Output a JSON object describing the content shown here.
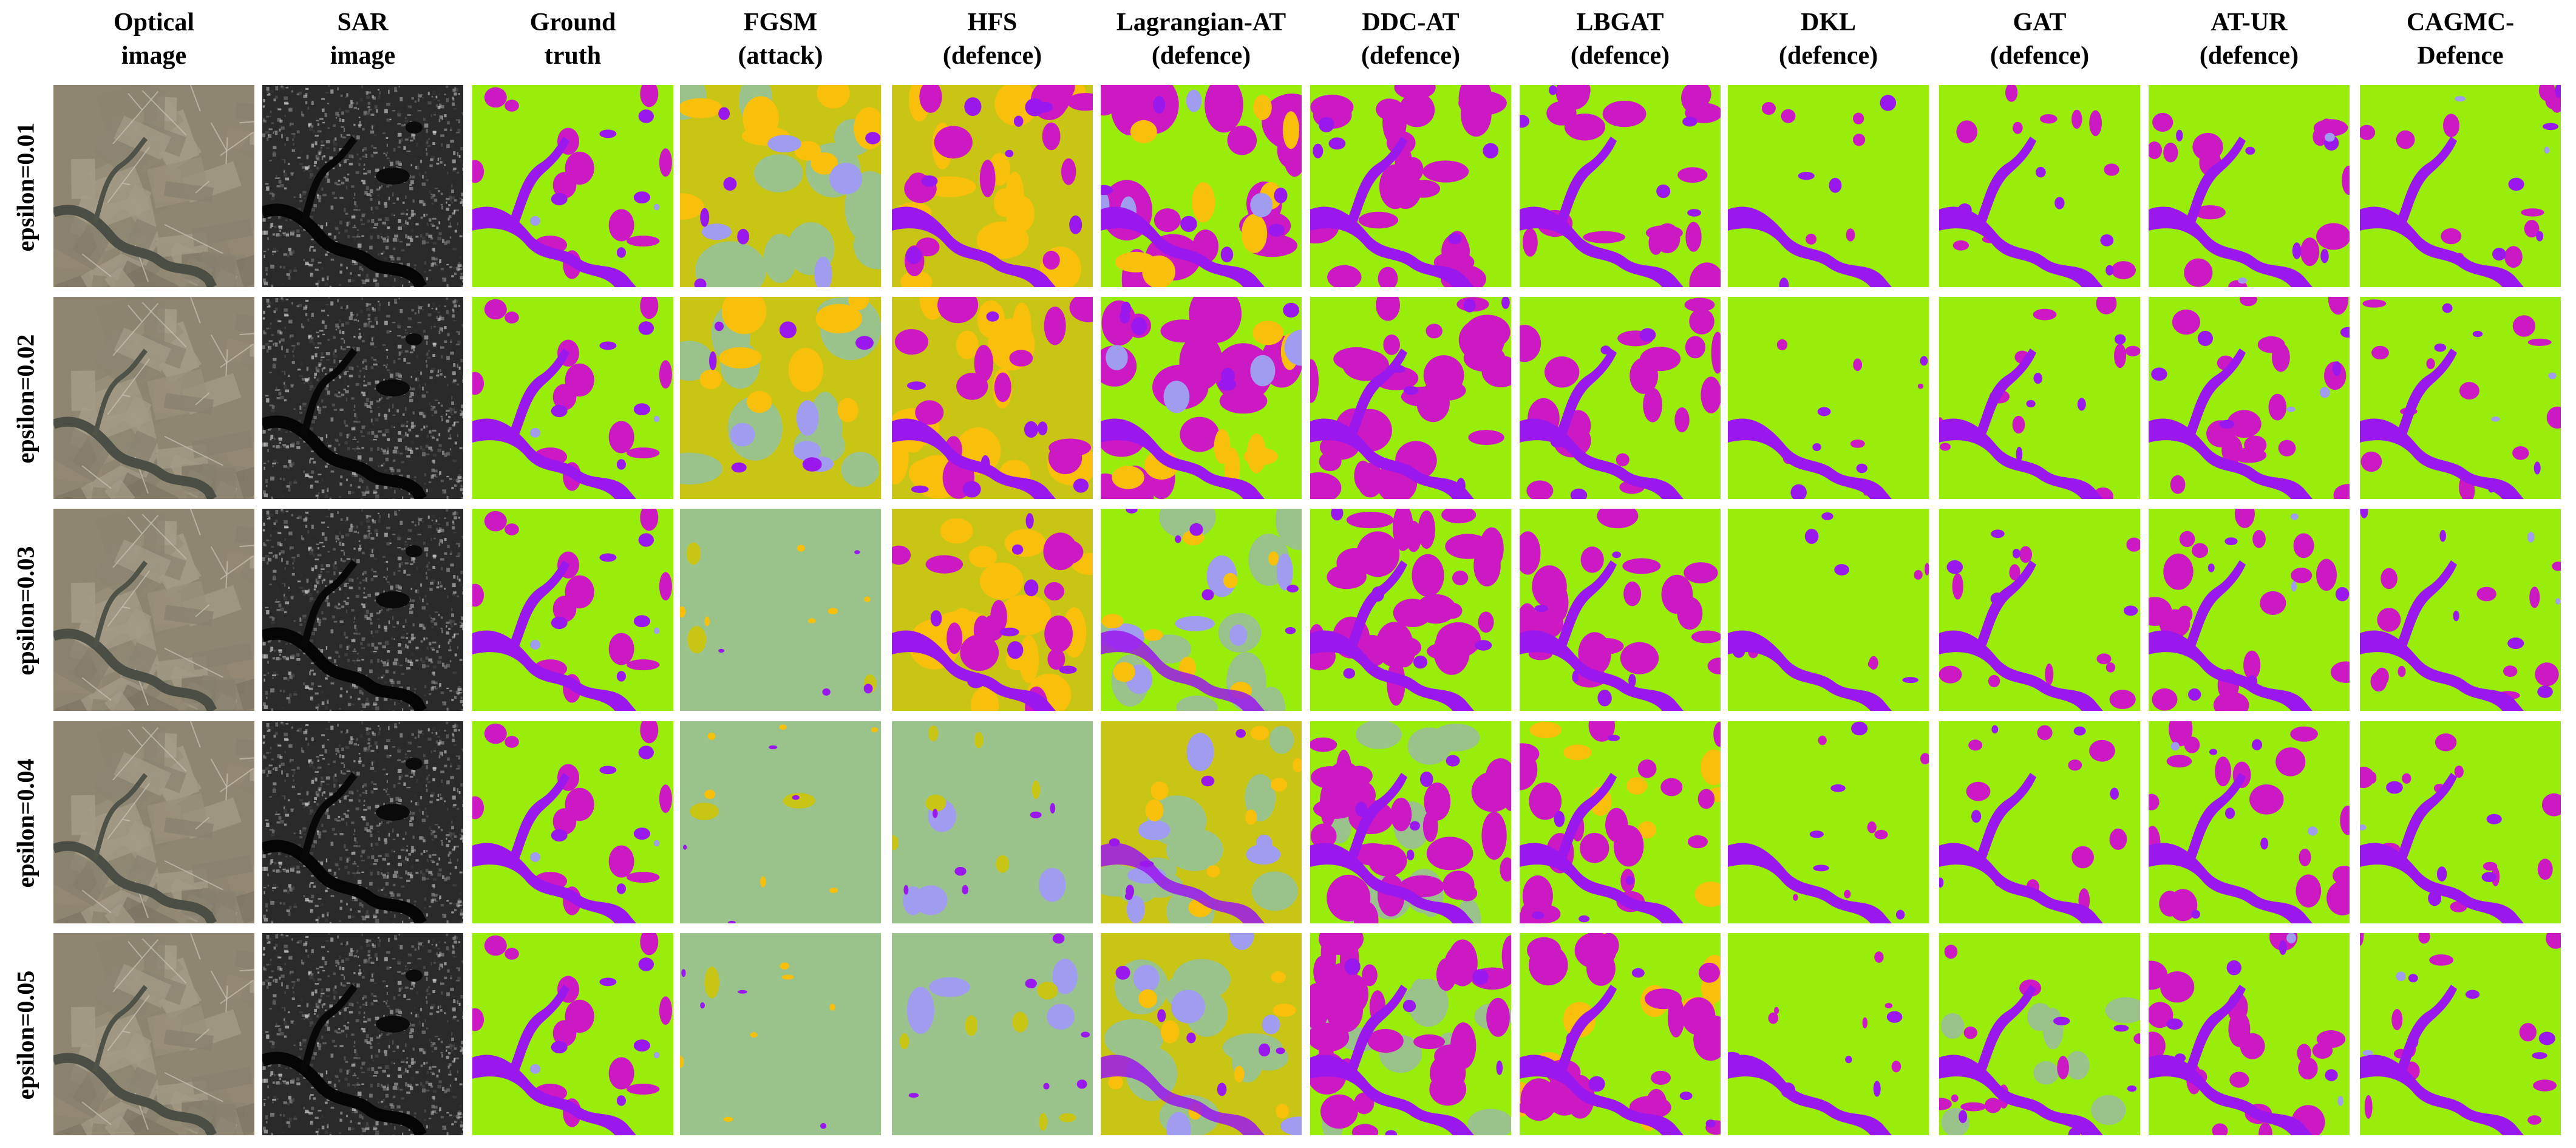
{
  "columns": [
    {
      "key": "optical",
      "lines": [
        "Optical",
        "image"
      ]
    },
    {
      "key": "sar",
      "lines": [
        "SAR",
        "image"
      ]
    },
    {
      "key": "gt",
      "lines": [
        "Ground",
        "truth"
      ]
    },
    {
      "key": "fgsm",
      "lines": [
        "FGSM",
        "(attack)"
      ]
    },
    {
      "key": "hfs",
      "lines": [
        "HFS",
        "(defence)"
      ]
    },
    {
      "key": "lagrangian",
      "lines": [
        "Lagrangian-AT",
        "(defence)"
      ]
    },
    {
      "key": "ddc",
      "lines": [
        "DDC-AT",
        "(defence)"
      ]
    },
    {
      "key": "lbgat",
      "lines": [
        "LBGAT",
        "(defence)"
      ]
    },
    {
      "key": "dkl",
      "lines": [
        "DKL",
        "(defence)"
      ]
    },
    {
      "key": "gat",
      "lines": [
        "GAT",
        "(defence)"
      ]
    },
    {
      "key": "atur",
      "lines": [
        "AT-UR",
        "(defence)"
      ]
    },
    {
      "key": "cagmc",
      "lines": [
        "CAGMC-",
        "Defence"
      ]
    }
  ],
  "rows": [
    {
      "label": "epsilon=0.01",
      "epsilon": 0.01
    },
    {
      "label": "epsilon=0.02",
      "epsilon": 0.02
    },
    {
      "label": "epsilon=0.03",
      "epsilon": 0.03
    },
    {
      "label": "epsilon=0.04",
      "epsilon": 0.04
    },
    {
      "label": "epsilon=0.05",
      "epsilon": 0.05
    }
  ],
  "class_colors": {
    "green": "#98ee0a",
    "magenta": "#cc19c4",
    "purple": "#9a17ee",
    "orange": "#f8c00a",
    "olive": "#c9c514",
    "sage": "#9ac38b",
    "lavender": "#a09cf0"
  },
  "image_kinds": {
    "optical": "optical-satellite-image",
    "sar": "sar-radar-image"
  }
}
